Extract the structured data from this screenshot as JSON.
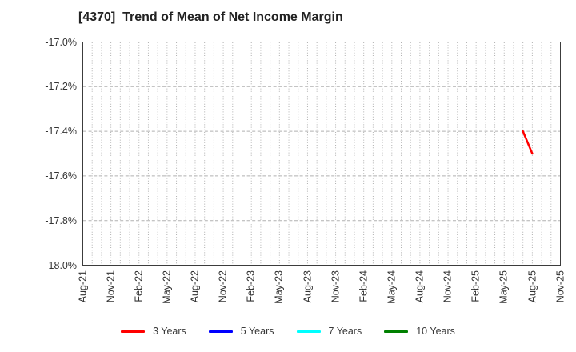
{
  "title": "[4370]  Trend of Mean of Net Income Margin",
  "chart_data": {
    "type": "line",
    "title": "[4370]  Trend of Mean of Net Income Margin",
    "x_axis": {
      "start": "Aug-21",
      "end": "Nov-25",
      "tick_labels": [
        "Aug-21",
        "Nov-21",
        "Feb-22",
        "May-22",
        "Aug-22",
        "Nov-22",
        "Feb-23",
        "May-23",
        "Aug-23",
        "Nov-23",
        "Feb-24",
        "May-24",
        "Aug-24",
        "Nov-24",
        "Feb-25",
        "May-25",
        "Aug-25",
        "Nov-25"
      ],
      "tick_interval_months": 3,
      "minor_grid": "monthly-dotted"
    },
    "y_axis": {
      "ylim": [
        -18.0,
        -17.0
      ],
      "ticks": [
        {
          "value": -17.0,
          "label": "-17.0%"
        },
        {
          "value": -17.2,
          "label": "-17.2%"
        },
        {
          "value": -17.4,
          "label": "-17.4%"
        },
        {
          "value": -17.6,
          "label": "-17.6%"
        },
        {
          "value": -17.8,
          "label": "-17.8%"
        },
        {
          "value": -18.0,
          "label": "-18.0%"
        }
      ],
      "grid": "dashed"
    },
    "legend": [
      {
        "label": "3 Years",
        "color": "#ff0000"
      },
      {
        "label": "5 Years",
        "color": "#0000ff"
      },
      {
        "label": "7 Years",
        "color": "#00ffff"
      },
      {
        "label": "10 Years",
        "color": "#008000"
      }
    ],
    "series": [
      {
        "name": "3 Years",
        "color": "#ff0000",
        "points": [
          {
            "x": "Jul-25",
            "y": -17.4
          },
          {
            "x": "Aug-25",
            "y": -17.5
          }
        ]
      },
      {
        "name": "5 Years",
        "color": "#0000ff",
        "points": []
      },
      {
        "name": "7 Years",
        "color": "#00ffff",
        "points": []
      },
      {
        "name": "10 Years",
        "color": "#008000",
        "points": []
      }
    ],
    "colors": {
      "background": "#ffffff",
      "spine": "#3c3c3c",
      "grid": "#b0b0b0",
      "tick_text": "#333333",
      "title_text": "#222222"
    }
  }
}
